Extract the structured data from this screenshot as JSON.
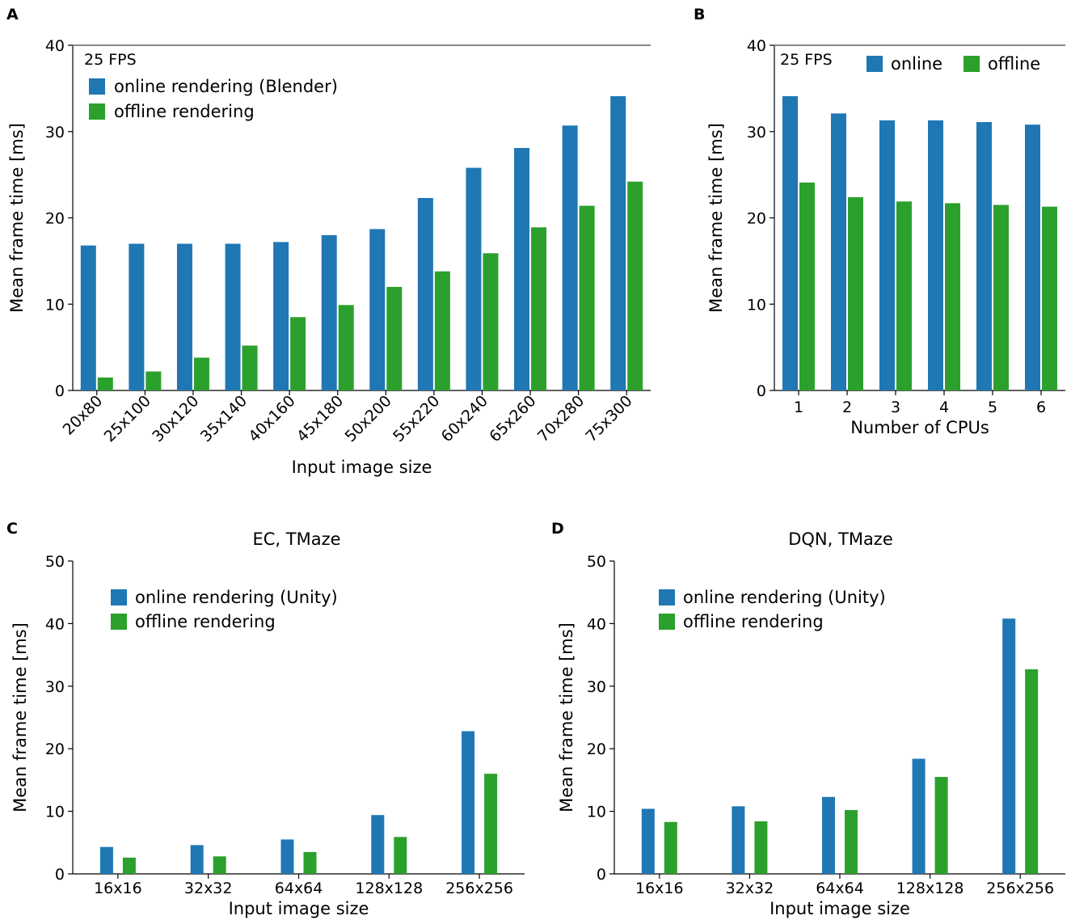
{
  "figure": {
    "panels": [
      "A",
      "B",
      "C",
      "D"
    ]
  },
  "colors": {
    "online": "#1f77b4",
    "offline": "#2ca02c",
    "fps_line": "#888888"
  },
  "chart_data": [
    {
      "id": "A",
      "type": "bar",
      "title": "",
      "xlabel": "Input image size",
      "ylabel": "Mean frame time [ms]",
      "ylim": [
        0,
        40
      ],
      "yticks": [
        0,
        10,
        20,
        30,
        40
      ],
      "categories": [
        "20x80",
        "25x100",
        "30x120",
        "35x140",
        "40x160",
        "45x180",
        "50x200",
        "55x220",
        "60x240",
        "65x260",
        "70x280",
        "75x300"
      ],
      "series": [
        {
          "name": "online rendering (Blender)",
          "values": [
            16.8,
            17.0,
            17.0,
            17.0,
            17.2,
            18.0,
            18.7,
            22.3,
            25.8,
            28.1,
            30.7,
            34.1
          ]
        },
        {
          "name": "offline rendering",
          "values": [
            1.5,
            2.2,
            3.8,
            5.2,
            8.5,
            9.9,
            12.0,
            13.8,
            15.9,
            18.9,
            21.4,
            24.2
          ]
        }
      ],
      "reference_line": {
        "value": 40,
        "label": "25 FPS"
      },
      "legend": "upper-left"
    },
    {
      "id": "B",
      "type": "bar",
      "title": "",
      "xlabel": "Number of CPUs",
      "ylabel": "Mean frame time [ms]",
      "ylim": [
        0,
        40
      ],
      "yticks": [
        0,
        10,
        20,
        30,
        40
      ],
      "categories": [
        "1",
        "2",
        "3",
        "4",
        "5",
        "6"
      ],
      "series": [
        {
          "name": "online",
          "values": [
            34.1,
            32.1,
            31.3,
            31.3,
            31.1,
            30.8
          ]
        },
        {
          "name": "offline",
          "values": [
            24.1,
            22.4,
            21.9,
            21.7,
            21.5,
            21.3
          ]
        }
      ],
      "reference_line": {
        "value": 40,
        "label": "25 FPS"
      },
      "legend": "top-right"
    },
    {
      "id": "C",
      "type": "bar",
      "title": "EC, TMaze",
      "xlabel": "Input image size",
      "ylabel": "Mean frame time [ms]",
      "ylim": [
        0,
        50
      ],
      "yticks": [
        0,
        10,
        20,
        30,
        40,
        50
      ],
      "categories": [
        "16x16",
        "32x32",
        "64x64",
        "128x128",
        "256x256"
      ],
      "series": [
        {
          "name": "online rendering (Unity)",
          "values": [
            4.3,
            4.6,
            5.5,
            9.4,
            22.8
          ]
        },
        {
          "name": "offline rendering",
          "values": [
            2.6,
            2.8,
            3.5,
            5.9,
            16.0
          ]
        }
      ],
      "legend": "upper-left"
    },
    {
      "id": "D",
      "type": "bar",
      "title": "DQN, TMaze",
      "xlabel": "Input image size",
      "ylabel": "Mean frame time [ms]",
      "ylim": [
        0,
        50
      ],
      "yticks": [
        0,
        10,
        20,
        30,
        40,
        50
      ],
      "categories": [
        "16x16",
        "32x32",
        "64x64",
        "128x128",
        "256x256"
      ],
      "series": [
        {
          "name": "online rendering (Unity)",
          "values": [
            10.4,
            10.8,
            12.3,
            18.4,
            40.8
          ]
        },
        {
          "name": "offline rendering",
          "values": [
            8.3,
            8.4,
            10.2,
            15.5,
            32.7
          ]
        }
      ],
      "legend": "upper-left"
    }
  ]
}
